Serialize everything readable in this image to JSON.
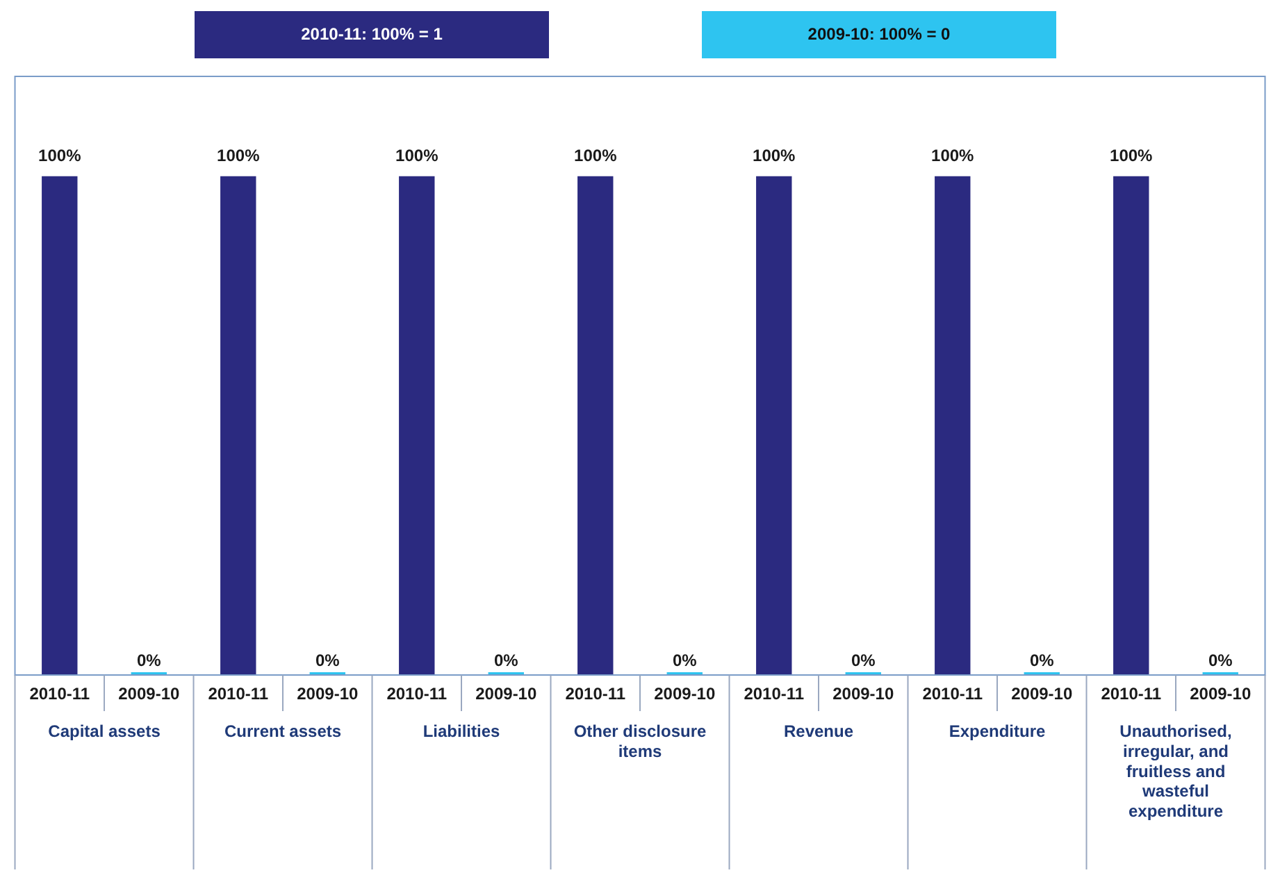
{
  "chart_data": {
    "type": "bar",
    "categories": [
      "Capital assets",
      "Current assets",
      "Liabilities",
      "Other disclosure items",
      "Revenue",
      "Expenditure",
      "Unauthorised, irregular, and fruitless and wasteful expenditure"
    ],
    "series": [
      {
        "name": "2010-11: 100% = 1",
        "color": "#2b2a80",
        "values": [
          100,
          100,
          100,
          100,
          100,
          100,
          100
        ],
        "value_labels": [
          "100%",
          "100%",
          "100%",
          "100%",
          "100%",
          "100%",
          "100%"
        ]
      },
      {
        "name": "2009-10: 100% = 0",
        "color": "#2ec4f0",
        "values": [
          0,
          0,
          0,
          0,
          0,
          0,
          0
        ],
        "value_labels": [
          "0%",
          "0%",
          "0%",
          "0%",
          "0%",
          "0%",
          "0%"
        ]
      }
    ],
    "annotations": [
      "2010-11",
      "2009-10",
      "2010-11",
      "2009-10",
      "2010-11",
      "2009-10",
      "2010-11",
      "2009-10",
      "2010-11",
      "2009-10",
      "2010-11",
      "2009-10",
      "2010-11",
      "2009-10"
    ],
    "legend": "top",
    "grid": false,
    "tick_labels": "x"
  }
}
